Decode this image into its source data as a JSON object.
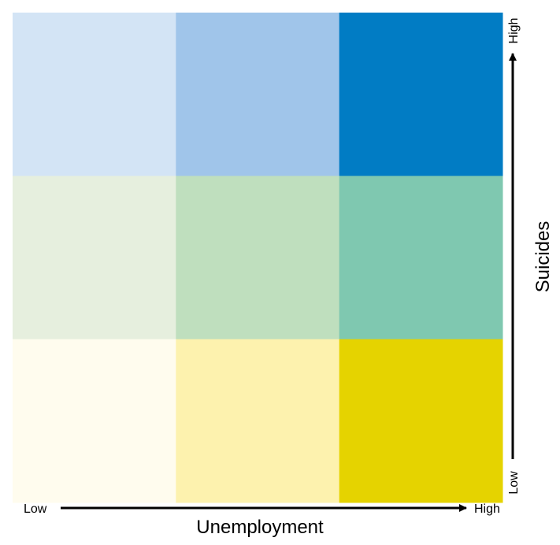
{
  "chart_data": {
    "type": "heatmap",
    "title": "",
    "xlabel": "Unemployment",
    "ylabel": "Suicides",
    "x_axis": {
      "low_label": "Low",
      "high_label": "High"
    },
    "y_axis": {
      "low_label": "Low",
      "high_label": "High"
    },
    "grid_size": [
      3,
      3
    ],
    "cells": [
      {
        "x": 1,
        "y": 3,
        "color": "#d3e4f5"
      },
      {
        "x": 2,
        "y": 3,
        "color": "#a0c5ea"
      },
      {
        "x": 3,
        "y": 3,
        "color": "#017cc4"
      },
      {
        "x": 1,
        "y": 2,
        "color": "#e6efde"
      },
      {
        "x": 2,
        "y": 2,
        "color": "#bfdfbe"
      },
      {
        "x": 3,
        "y": 2,
        "color": "#7fc8b0"
      },
      {
        "x": 1,
        "y": 1,
        "color": "#fffcee"
      },
      {
        "x": 2,
        "y": 1,
        "color": "#fdf2ae"
      },
      {
        "x": 3,
        "y": 1,
        "color": "#e5d300"
      }
    ]
  }
}
